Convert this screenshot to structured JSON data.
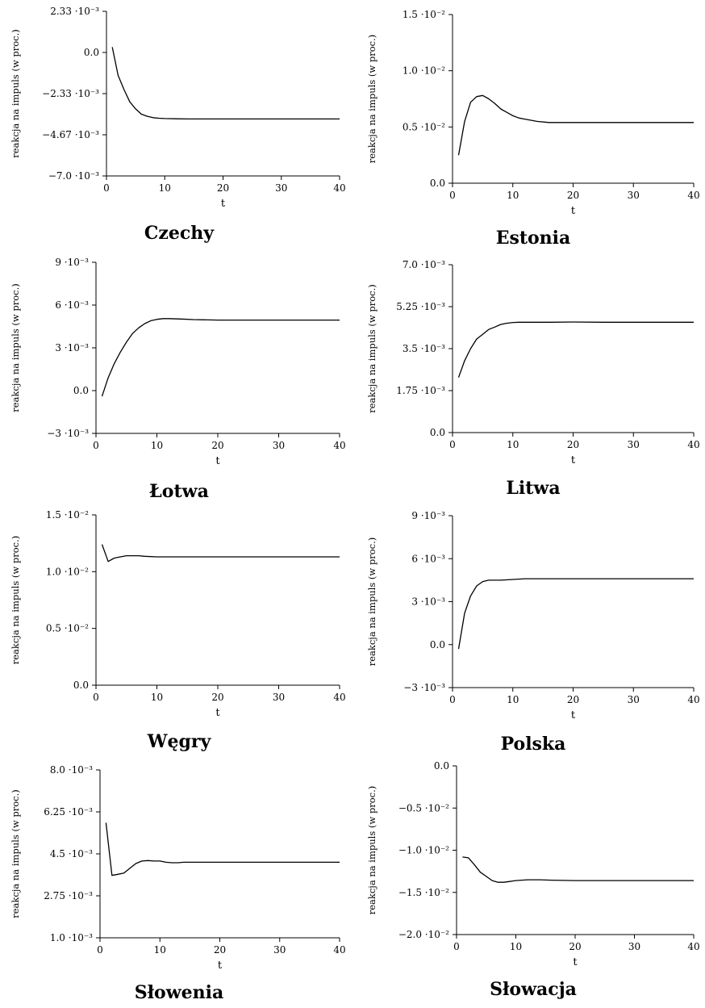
{
  "chart_data": [
    {
      "type": "line",
      "title": "Czechy",
      "xlabel": "t",
      "ylabel": "reakcja na impuls (w proc.)",
      "xlim": [
        0,
        40
      ],
      "ylim": [
        -0.007,
        0.00233
      ],
      "xticks": [
        "0",
        "10",
        "20",
        "30",
        "40"
      ],
      "yticks": [
        "2.33 ·10⁻³",
        "0.0",
        "−2.33 ·10⁻³",
        "−4.67 ·10⁻³",
        "−7.0 ·10⁻³"
      ],
      "series": [
        {
          "x": [
            1,
            2,
            3,
            4,
            5,
            6,
            7,
            8,
            9,
            10,
            12,
            14,
            16,
            20,
            25,
            30,
            35,
            40
          ],
          "values": [
            0.0003,
            -0.0013,
            -0.0021,
            -0.0028,
            -0.0032,
            -0.0035,
            -0.00362,
            -0.0037,
            -0.00373,
            -0.00375,
            -0.00376,
            -0.00377,
            -0.00377,
            -0.00377,
            -0.00377,
            -0.00377,
            -0.00377,
            -0.00377
          ]
        }
      ]
    },
    {
      "type": "line",
      "title": "Estonia",
      "xlabel": "t",
      "ylabel": "reakcja na impuls (w proc.)",
      "xlim": [
        0,
        40
      ],
      "ylim": [
        0,
        0.015
      ],
      "xticks": [
        "0",
        "10",
        "20",
        "30",
        "40"
      ],
      "yticks": [
        "1.5 ·10⁻²",
        "1.0 ·10⁻²",
        "0.5 ·10⁻²",
        "0.0"
      ],
      "series": [
        {
          "x": [
            1,
            2,
            3,
            4,
            5,
            6,
            7,
            8,
            9,
            10,
            11,
            12,
            14,
            16,
            20,
            25,
            30,
            35,
            40
          ],
          "values": [
            0.0025,
            0.0055,
            0.0072,
            0.0077,
            0.0078,
            0.0075,
            0.0071,
            0.0066,
            0.0063,
            0.006,
            0.0058,
            0.0057,
            0.0055,
            0.0054,
            0.0054,
            0.0054,
            0.0054,
            0.0054,
            0.0054
          ]
        }
      ]
    },
    {
      "type": "line",
      "title": "Łotwa",
      "xlabel": "t",
      "ylabel": "reakcja na impuls (w proc.)",
      "xlim": [
        0,
        40
      ],
      "ylim": [
        -0.003,
        0.009
      ],
      "xticks": [
        "0",
        "10",
        "20",
        "30",
        "40"
      ],
      "yticks": [
        "9 ·10⁻³",
        "6 ·10⁻³",
        "3 ·10⁻³",
        "0.0",
        "−3 ·10⁻³"
      ],
      "series": [
        {
          "x": [
            1,
            2,
            3,
            4,
            5,
            6,
            7,
            8,
            9,
            10,
            11,
            12,
            14,
            16,
            20,
            25,
            30,
            35,
            40
          ],
          "values": [
            -0.0004,
            0.0009,
            0.0019,
            0.0027,
            0.0034,
            0.004,
            0.0044,
            0.0047,
            0.0049,
            0.005,
            0.00505,
            0.00505,
            0.00502,
            0.00498,
            0.00495,
            0.00495,
            0.00495,
            0.00495,
            0.00495
          ]
        }
      ]
    },
    {
      "type": "line",
      "title": "Litwa",
      "xlabel": "t",
      "ylabel": "reakcja na impuls (w proc.)",
      "xlim": [
        0,
        40
      ],
      "ylim": [
        0,
        0.007
      ],
      "xticks": [
        "0",
        "10",
        "20",
        "30",
        "40"
      ],
      "yticks": [
        "7.0 ·10⁻³",
        "5.25 ·10⁻³",
        "3.5 ·10⁻³",
        "1.75 ·10⁻³",
        "0.0"
      ],
      "series": [
        {
          "x": [
            1,
            2,
            3,
            4,
            5,
            6,
            7,
            8,
            9,
            10,
            11,
            12,
            14,
            16,
            20,
            25,
            30,
            35,
            40
          ],
          "values": [
            0.0023,
            0.003,
            0.0035,
            0.0039,
            0.0041,
            0.0043,
            0.0044,
            0.00451,
            0.00456,
            0.00459,
            0.0046,
            0.0046,
            0.0046,
            0.0046,
            0.00461,
            0.0046,
            0.0046,
            0.0046,
            0.0046
          ]
        }
      ]
    },
    {
      "type": "line",
      "title": "Węgry",
      "xlabel": "t",
      "ylabel": "reakcja na impuls (w proc.)",
      "xlim": [
        0,
        40
      ],
      "ylim": [
        0,
        0.015
      ],
      "xticks": [
        "0",
        "10",
        "20",
        "30",
        "40"
      ],
      "yticks": [
        "1.5 ·10⁻²",
        "1.0 ·10⁻²",
        "0.5 ·10⁻²",
        "0.0"
      ],
      "series": [
        {
          "x": [
            1,
            2,
            3,
            4,
            5,
            6,
            7,
            8,
            10,
            12,
            14,
            16,
            20,
            25,
            30,
            35,
            40
          ],
          "values": [
            0.0124,
            0.0109,
            0.0112,
            0.0113,
            0.0114,
            0.0114,
            0.0114,
            0.01135,
            0.0113,
            0.0113,
            0.0113,
            0.0113,
            0.0113,
            0.0113,
            0.0113,
            0.0113,
            0.0113
          ]
        }
      ]
    },
    {
      "type": "line",
      "title": "Polska",
      "xlabel": "t",
      "ylabel": "reakcja na impuls (w proc.)",
      "xlim": [
        0,
        40
      ],
      "ylim": [
        -0.003,
        0.009
      ],
      "xticks": [
        "0",
        "10",
        "20",
        "30",
        "40"
      ],
      "yticks": [
        "9 ·10⁻³",
        "6 ·10⁻³",
        "3 ·10⁻³",
        "0.0",
        "−3 ·10⁻³"
      ],
      "series": [
        {
          "x": [
            1,
            2,
            3,
            4,
            5,
            6,
            7,
            8,
            10,
            12,
            14,
            16,
            20,
            25,
            30,
            35,
            40
          ],
          "values": [
            -0.0003,
            0.0022,
            0.0034,
            0.0041,
            0.0044,
            0.0045,
            0.0045,
            0.0045,
            0.00455,
            0.0046,
            0.0046,
            0.0046,
            0.0046,
            0.0046,
            0.0046,
            0.0046,
            0.0046
          ]
        }
      ]
    },
    {
      "type": "line",
      "title": "Słowenia",
      "xlabel": "t",
      "ylabel": "reakcja na impuls (w proc.)",
      "xlim": [
        0,
        40
      ],
      "ylim": [
        0.001,
        0.008
      ],
      "xticks": [
        "0",
        "10",
        "20",
        "30",
        "40"
      ],
      "yticks": [
        "8.0 ·10⁻³",
        "6.25 ·10⁻³",
        "4.5 ·10⁻³",
        "2.75 ·10⁻³",
        "1.0 ·10⁻³"
      ],
      "series": [
        {
          "x": [
            1,
            2,
            3,
            4,
            5,
            6,
            7,
            8,
            9,
            10,
            11,
            12,
            13,
            14,
            16,
            20,
            25,
            30,
            35,
            40
          ],
          "values": [
            0.0058,
            0.0036,
            0.00365,
            0.0037,
            0.0039,
            0.0041,
            0.0042,
            0.00422,
            0.0042,
            0.0042,
            0.00415,
            0.00413,
            0.00413,
            0.00415,
            0.00415,
            0.00415,
            0.00415,
            0.00415,
            0.00415,
            0.00415
          ]
        }
      ]
    },
    {
      "type": "line",
      "title": "Słowacja",
      "xlabel": "t",
      "ylabel": "reakcja na impuls (w proc.)",
      "xlim": [
        0,
        40
      ],
      "ylim": [
        -0.02,
        0
      ],
      "xticks": [
        "0",
        "10",
        "20",
        "30",
        "40"
      ],
      "yticks": [
        "0.0",
        "−0.5 ·10⁻²",
        "−1.0 ·10⁻²",
        "−1.5 ·10⁻²",
        "−2.0 ·10⁻²"
      ],
      "series": [
        {
          "x": [
            1,
            2,
            3,
            4,
            5,
            6,
            7,
            8,
            9,
            10,
            12,
            14,
            16,
            20,
            25,
            30,
            35,
            40
          ],
          "values": [
            -0.0108,
            -0.0109,
            -0.0117,
            -0.0126,
            -0.0131,
            -0.0136,
            -0.0138,
            -0.0138,
            -0.0137,
            -0.0136,
            -0.0135,
            -0.0135,
            -0.01355,
            -0.0136,
            -0.0136,
            -0.0136,
            -0.0136,
            -0.0136
          ]
        }
      ]
    }
  ]
}
